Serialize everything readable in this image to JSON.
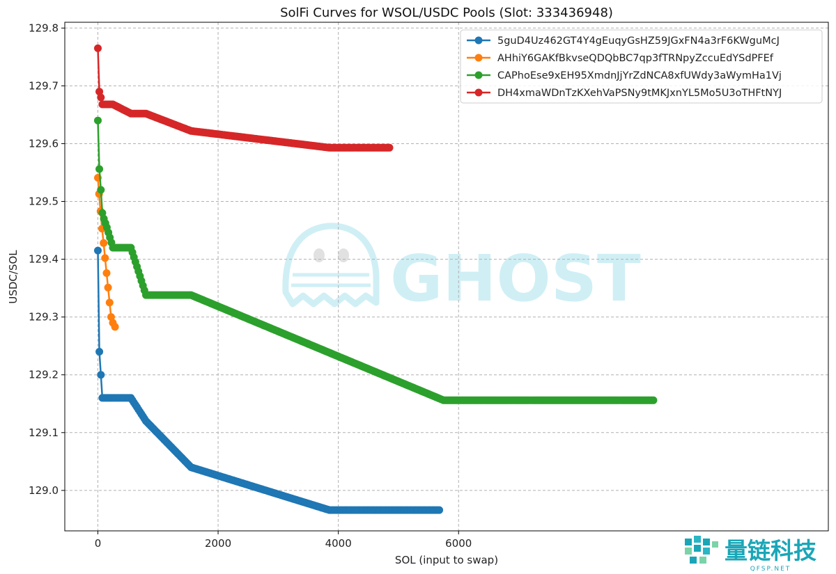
{
  "chart_data": {
    "type": "line",
    "title": "SolFi Curves for WSOL/USDC Pools (Slot: 333436948)",
    "xlabel": "SOL (input to swap)",
    "ylabel": "USDC/SOL",
    "xlim": [
      -550,
      12150
    ],
    "ylim": [
      128.93,
      129.81
    ],
    "xticks": [
      0,
      2000,
      4000,
      6000
    ],
    "yticks": [
      129.0,
      129.1,
      129.2,
      129.3,
      129.4,
      129.5,
      129.6,
      129.7,
      129.8
    ],
    "grid": true,
    "legend_position": "top-right",
    "series": [
      {
        "name": "5guD4Uz462GT4Y4gEuqyGsHZ59JGxFN4a3rF6KWguMcJ",
        "color": "#1f77b4",
        "points": [
          [
            0,
            129.415
          ],
          [
            25,
            129.24
          ],
          [
            50,
            129.2
          ],
          [
            75,
            129.16
          ],
          [
            150,
            129.16
          ],
          [
            300,
            129.16
          ],
          [
            550,
            129.16
          ],
          [
            800,
            129.12
          ],
          [
            1550,
            129.04
          ],
          [
            3850,
            128.966
          ],
          [
            5680,
            128.966
          ]
        ]
      },
      {
        "name": "AHhiY6GAKfBkvseQDQbBC7qp3fTRNpyZccuEdYSdPFEf",
        "color": "#ff7f0e",
        "points": [
          [
            0,
            129.541
          ],
          [
            20,
            129.513
          ],
          [
            45,
            129.483
          ],
          [
            70,
            129.453
          ],
          [
            95,
            129.428
          ],
          [
            120,
            129.402
          ],
          [
            145,
            129.376
          ],
          [
            170,
            129.351
          ],
          [
            195,
            129.325
          ],
          [
            220,
            129.3
          ],
          [
            250,
            129.29
          ],
          [
            285,
            129.283
          ]
        ]
      },
      {
        "name": "CAPhoEse9xEH95XmdnJjYrZdNCA8xfUWdy3aWymHa1Vj",
        "color": "#2ca02c",
        "points": [
          [
            0,
            129.64
          ],
          [
            25,
            129.556
          ],
          [
            50,
            129.52
          ],
          [
            75,
            129.48
          ],
          [
            100,
            129.47
          ],
          [
            150,
            129.455
          ],
          [
            250,
            129.42
          ],
          [
            550,
            129.42
          ],
          [
            800,
            129.338
          ],
          [
            1550,
            129.338
          ],
          [
            5750,
            129.156
          ],
          [
            9240,
            129.156
          ]
        ]
      },
      {
        "name": "DH4xmaWDnTzKXehVaPSNy9tMKJxnYL5Mo5U3oTHFtNYJ",
        "color": "#d62728",
        "points": [
          [
            0,
            129.765
          ],
          [
            25,
            129.69
          ],
          [
            50,
            129.68
          ],
          [
            75,
            129.668
          ],
          [
            250,
            129.668
          ],
          [
            550,
            129.652
          ],
          [
            800,
            129.652
          ],
          [
            1550,
            129.622
          ],
          [
            3850,
            129.593
          ],
          [
            4850,
            129.593
          ]
        ]
      }
    ]
  },
  "watermark": {
    "text": "GHOST",
    "color": "#a8e3ee",
    "icon": "ghost-icon"
  },
  "brand": {
    "name": "量链科技",
    "domain": "QFSP.NET",
    "color": "#1aa6b7",
    "icon": "puzzle-icon"
  }
}
